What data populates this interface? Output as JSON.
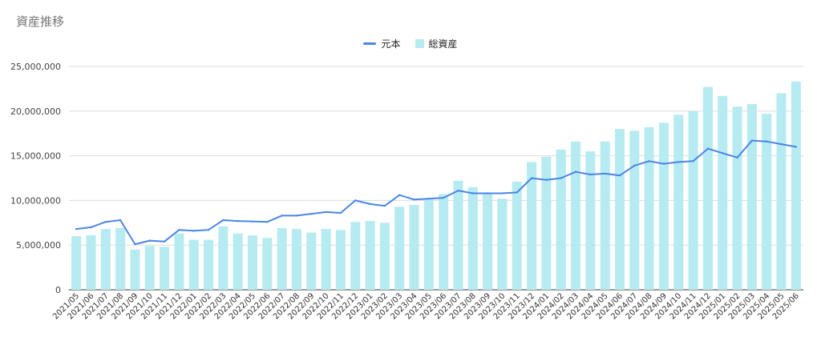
{
  "chart_data": {
    "type": "bar",
    "title": "資産推移",
    "xlabel": "",
    "ylabel": "",
    "ylim": [
      0,
      25000000
    ],
    "yticks": [
      0,
      5000000,
      10000000,
      15000000,
      20000000,
      25000000
    ],
    "ytick_labels": [
      "0",
      "5,000,000",
      "10,000,000",
      "15,000,000",
      "20,000,000",
      "25,000,000"
    ],
    "grid": true,
    "legend_position": "top",
    "categories": [
      "2021/05",
      "2021/06",
      "2021/07",
      "2021/08",
      "2021/09",
      "2021/10",
      "2021/11",
      "2021/12",
      "2022/01",
      "2022/02",
      "2022/03",
      "2022/04",
      "2022/05",
      "2022/06",
      "2022/07",
      "2022/08",
      "2022/09",
      "2022/10",
      "2022/11",
      "2022/12",
      "2023/01",
      "2023/02",
      "2023/03",
      "2023/04",
      "2023/05",
      "2023/06",
      "2023/07",
      "2023/08",
      "2023/09",
      "2023/10",
      "2023/11",
      "2023/12",
      "2024/01",
      "2024/02",
      "2024/03",
      "2024/04",
      "2024/05",
      "2024/06",
      "2024/07",
      "2024/08",
      "2024/09",
      "2024/10",
      "2024/11",
      "2024/12",
      "2025/01",
      "2025/02",
      "2025/03",
      "2025/04",
      "2025/05",
      "2025/06"
    ],
    "series": [
      {
        "name": "元本",
        "kind": "line",
        "color": "#4a86e8",
        "values": [
          6800000,
          7000000,
          7600000,
          7800000,
          5100000,
          5500000,
          5400000,
          6700000,
          6600000,
          6700000,
          7800000,
          7700000,
          7650000,
          7600000,
          8300000,
          8300000,
          8500000,
          8700000,
          8600000,
          10000000,
          9600000,
          9400000,
          10600000,
          10100000,
          10200000,
          10300000,
          11100000,
          10800000,
          10800000,
          10800000,
          10900000,
          12500000,
          12300000,
          12500000,
          13200000,
          12900000,
          13000000,
          12800000,
          13900000,
          14400000,
          14100000,
          14300000,
          14400000,
          15800000,
          15300000,
          14800000,
          16700000,
          16600000,
          16300000,
          16000000
        ]
      },
      {
        "name": "総資産",
        "kind": "bar",
        "color": "#b7ebf2",
        "values": [
          6000000,
          6100000,
          6800000,
          6900000,
          4500000,
          4900000,
          4800000,
          6300000,
          5600000,
          5600000,
          7100000,
          6300000,
          6100000,
          5800000,
          6900000,
          6800000,
          6400000,
          6800000,
          6700000,
          7600000,
          7700000,
          7500000,
          9300000,
          9500000,
          10100000,
          10700000,
          12200000,
          11500000,
          10700000,
          10200000,
          12100000,
          14300000,
          14900000,
          15700000,
          16600000,
          15500000,
          16600000,
          18000000,
          17800000,
          18200000,
          18700000,
          19600000,
          20000000,
          22700000,
          21700000,
          20500000,
          20800000,
          19700000,
          22000000,
          23300000
        ]
      }
    ]
  }
}
